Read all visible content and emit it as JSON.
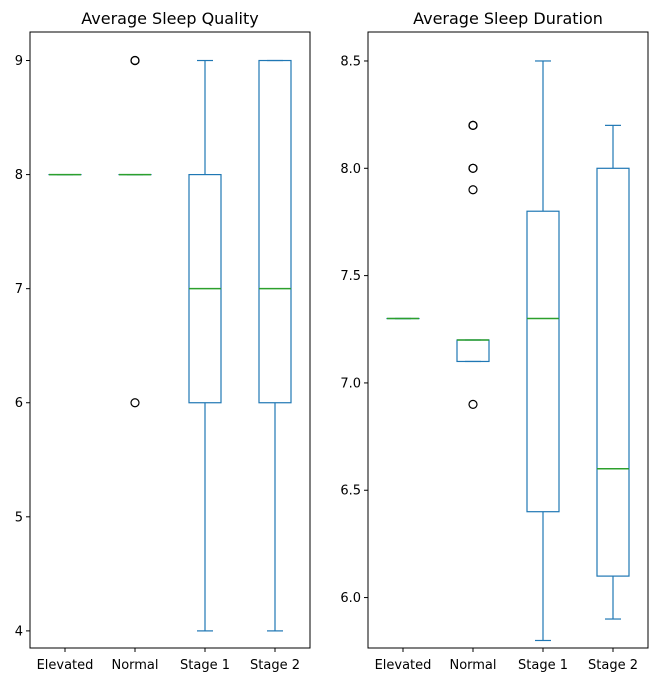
{
  "chart_data": [
    {
      "type": "box",
      "title": "Average Sleep Quality",
      "categories": [
        "Elevated",
        "Normal",
        "Stage 1",
        "Stage 2"
      ],
      "ylim": [
        3.85,
        9.25
      ],
      "yticks": [
        {
          "value": 4,
          "label": "4"
        },
        {
          "value": 5,
          "label": "5"
        },
        {
          "value": 6,
          "label": "6"
        },
        {
          "value": 7,
          "label": "7"
        },
        {
          "value": 8,
          "label": "8"
        },
        {
          "value": 9,
          "label": "9"
        }
      ],
      "boxes": [
        {
          "category": "Elevated",
          "whislo": 8,
          "q1": 8,
          "med": 8,
          "q3": 8,
          "whishi": 8,
          "fliers": []
        },
        {
          "category": "Normal",
          "whislo": 8,
          "q1": 8,
          "med": 8,
          "q3": 8,
          "whishi": 8,
          "fliers": [
            9,
            9,
            6
          ]
        },
        {
          "category": "Stage 1",
          "whislo": 4,
          "q1": 6,
          "med": 7,
          "q3": 8,
          "whishi": 9,
          "fliers": []
        },
        {
          "category": "Stage 2",
          "whislo": 4,
          "q1": 6,
          "med": 7,
          "q3": 9,
          "whishi": 9,
          "fliers": []
        }
      ]
    },
    {
      "type": "box",
      "title": "Average Sleep Duration",
      "categories": [
        "Elevated",
        "Normal",
        "Stage 1",
        "Stage 2"
      ],
      "ylim": [
        5.765,
        8.635
      ],
      "yticks": [
        {
          "value": 6.0,
          "label": "6.0"
        },
        {
          "value": 6.5,
          "label": "6.5"
        },
        {
          "value": 7.0,
          "label": "7.0"
        },
        {
          "value": 7.5,
          "label": "7.5"
        },
        {
          "value": 8.0,
          "label": "8.0"
        },
        {
          "value": 8.5,
          "label": "8.5"
        }
      ],
      "boxes": [
        {
          "category": "Elevated",
          "whislo": 7.3,
          "q1": 7.3,
          "med": 7.3,
          "q3": 7.3,
          "whishi": 7.3,
          "fliers": []
        },
        {
          "category": "Normal",
          "whislo": 7.1,
          "q1": 7.1,
          "med": 7.2,
          "q3": 7.2,
          "whishi": 7.2,
          "fliers": [
            8.2,
            8.2,
            8.0,
            8.0,
            7.9,
            6.9
          ]
        },
        {
          "category": "Stage 1",
          "whislo": 5.8,
          "q1": 6.4,
          "med": 7.3,
          "q3": 7.8,
          "whishi": 8.5,
          "fliers": []
        },
        {
          "category": "Stage 2",
          "whislo": 5.9,
          "q1": 6.1,
          "med": 6.6,
          "q3": 8.0,
          "whishi": 8.2,
          "fliers": []
        }
      ]
    }
  ]
}
